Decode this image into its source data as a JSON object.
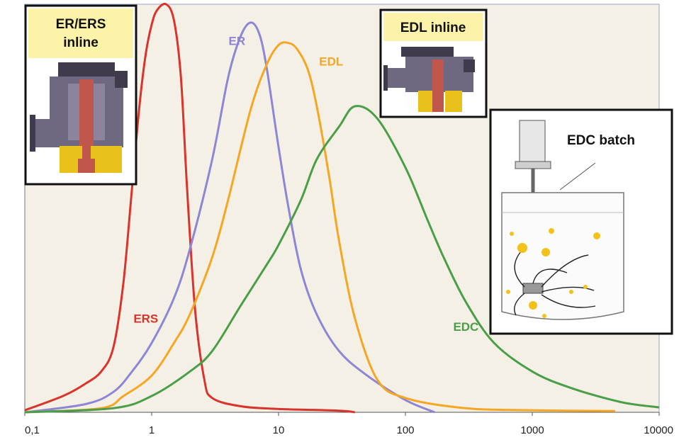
{
  "chart_data": {
    "type": "line",
    "x_scale": "log",
    "xlim": [
      0.1,
      10000
    ],
    "ylim": [
      0,
      1
    ],
    "x_ticks": [
      0.1,
      1,
      10,
      100,
      1000,
      10000
    ],
    "x_tick_labels": [
      "0,1",
      "1",
      "10",
      "100",
      "1000",
      "10000"
    ],
    "grid": false,
    "title": "",
    "xlabel": "",
    "ylabel": "",
    "series": [
      {
        "name": "ERS",
        "color": "#d9342b",
        "points": [
          [
            0.1,
            0.005
          ],
          [
            0.2,
            0.04
          ],
          [
            0.3,
            0.07
          ],
          [
            0.4,
            0.1
          ],
          [
            0.5,
            0.16
          ],
          [
            0.6,
            0.32
          ],
          [
            0.7,
            0.55
          ],
          [
            0.8,
            0.75
          ],
          [
            0.9,
            0.88
          ],
          [
            1.0,
            0.95
          ],
          [
            1.1,
            0.985
          ],
          [
            1.3,
            1.0
          ],
          [
            1.5,
            0.96
          ],
          [
            1.7,
            0.82
          ],
          [
            1.9,
            0.55
          ],
          [
            2.2,
            0.25
          ],
          [
            2.6,
            0.08
          ],
          [
            3,
            0.035
          ],
          [
            5,
            0.015
          ],
          [
            10,
            0.008
          ],
          [
            30,
            0.004
          ],
          [
            40,
            0.0
          ]
        ]
      },
      {
        "name": "ER",
        "color": "#8e85d6",
        "points": [
          [
            0.1,
            0.0
          ],
          [
            0.3,
            0.02
          ],
          [
            0.5,
            0.05
          ],
          [
            0.7,
            0.1
          ],
          [
            1.0,
            0.17
          ],
          [
            1.5,
            0.28
          ],
          [
            2,
            0.4
          ],
          [
            3,
            0.62
          ],
          [
            4,
            0.82
          ],
          [
            5,
            0.92
          ],
          [
            6,
            0.955
          ],
          [
            7,
            0.93
          ],
          [
            8,
            0.85
          ],
          [
            10,
            0.65
          ],
          [
            12,
            0.5
          ],
          [
            15,
            0.35
          ],
          [
            20,
            0.24
          ],
          [
            30,
            0.15
          ],
          [
            50,
            0.09
          ],
          [
            100,
            0.03
          ],
          [
            170,
            0.0
          ]
        ]
      },
      {
        "name": "EDL",
        "color": "#f5a623",
        "points": [
          [
            0.1,
            0.0
          ],
          [
            0.4,
            0.01
          ],
          [
            0.6,
            0.04
          ],
          [
            1,
            0.09
          ],
          [
            1.5,
            0.17
          ],
          [
            2,
            0.24
          ],
          [
            3,
            0.38
          ],
          [
            4,
            0.52
          ],
          [
            6,
            0.74
          ],
          [
            8,
            0.85
          ],
          [
            10,
            0.9
          ],
          [
            12,
            0.905
          ],
          [
            14,
            0.89
          ],
          [
            17,
            0.84
          ],
          [
            20,
            0.75
          ],
          [
            25,
            0.58
          ],
          [
            30,
            0.42
          ],
          [
            40,
            0.23
          ],
          [
            60,
            0.08
          ],
          [
            100,
            0.035
          ],
          [
            300,
            0.01
          ],
          [
            1000,
            0.005
          ],
          [
            4500,
            0.003
          ]
        ]
      },
      {
        "name": "EDC",
        "color": "#4a9e47",
        "points": [
          [
            0.1,
            0.0
          ],
          [
            0.5,
            0.01
          ],
          [
            1,
            0.04
          ],
          [
            2,
            0.1
          ],
          [
            3,
            0.15
          ],
          [
            5,
            0.26
          ],
          [
            8,
            0.36
          ],
          [
            10,
            0.41
          ],
          [
            15,
            0.52
          ],
          [
            20,
            0.62
          ],
          [
            30,
            0.7
          ],
          [
            40,
            0.75
          ],
          [
            60,
            0.72
          ],
          [
            100,
            0.6
          ],
          [
            150,
            0.47
          ],
          [
            200,
            0.38
          ],
          [
            300,
            0.27
          ],
          [
            500,
            0.17
          ],
          [
            1000,
            0.1
          ],
          [
            2000,
            0.06
          ],
          [
            5000,
            0.025
          ],
          [
            10000,
            0.012
          ]
        ]
      }
    ],
    "annotations": [
      {
        "text": "ERS",
        "x": 0.9,
        "y": 0.22,
        "color": "#d9342b"
      },
      {
        "text": "ER",
        "x": 4.7,
        "y": 0.9,
        "color": "#8e85d6"
      },
      {
        "text": "EDL",
        "x": 26,
        "y": 0.85,
        "color": "#f5a623"
      },
      {
        "text": "EDC",
        "x": 300,
        "y": 0.2,
        "color": "#4a9e47"
      }
    ]
  },
  "insets": {
    "er_ers": {
      "title_line1": "ER/ERS",
      "title_line2": "inline"
    },
    "edl": {
      "title": "EDL inline"
    },
    "edc": {
      "title": "EDC batch"
    }
  },
  "colors": {
    "plot_bg": "#f4f0e6",
    "label_bg": "#fdf3a8",
    "machine_body": "#6e6880",
    "machine_dark": "#3f3a4c",
    "rotor": "#c0574a",
    "gear": "#e8c11a",
    "bubble": "#f2c21a"
  }
}
